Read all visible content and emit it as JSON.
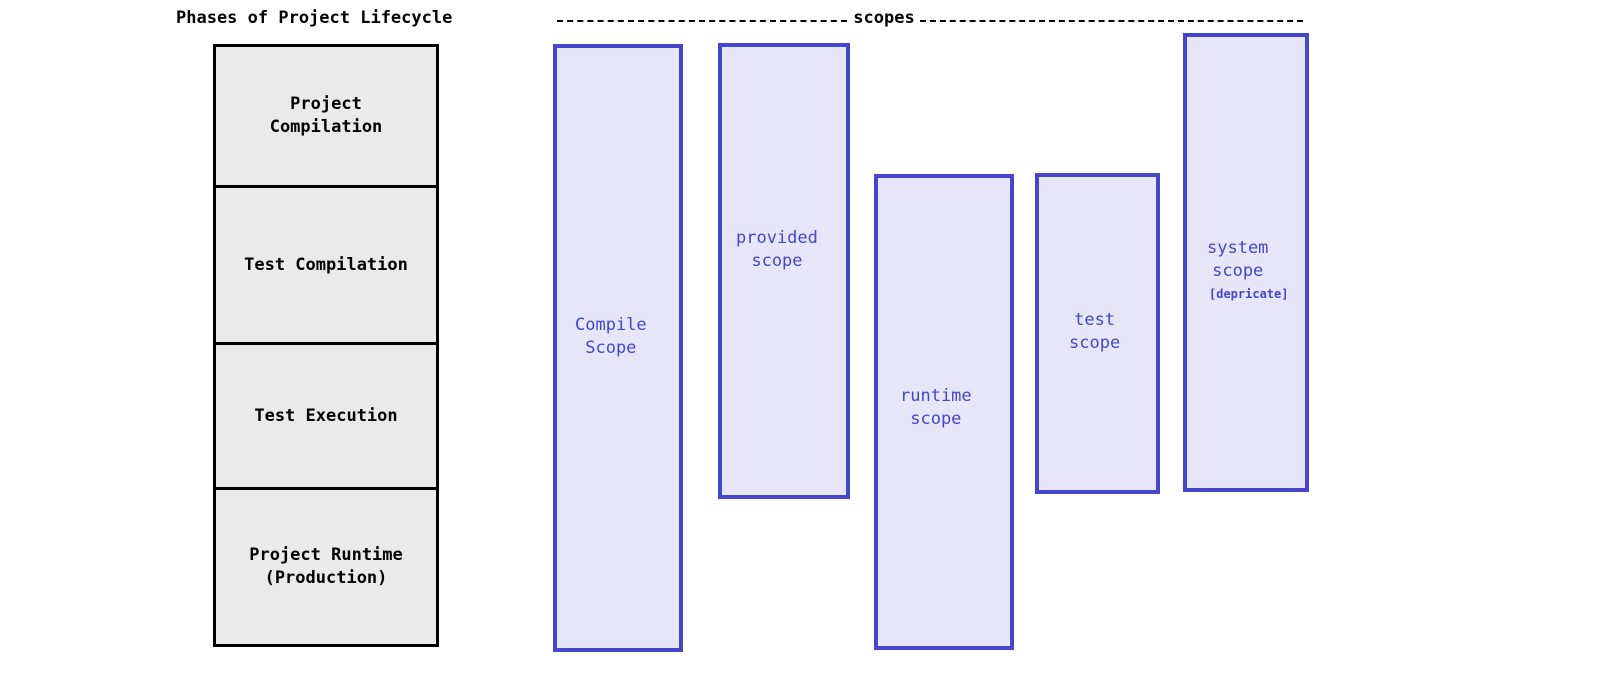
{
  "title": "Phases of Project Lifecycle",
  "scopes_header": "scopes",
  "phases": [
    {
      "label": "Project\nCompilation"
    },
    {
      "label": "Test Compilation"
    },
    {
      "label": "Test Execution"
    },
    {
      "label": "Project Runtime\n(Production)"
    }
  ],
  "scopes": [
    {
      "label": "Compile\nScope",
      "covers": [
        "Project Compilation",
        "Test Compilation",
        "Test Execution",
        "Project Runtime (Production)"
      ]
    },
    {
      "label": "provided\nscope",
      "covers": [
        "Project Compilation",
        "Test Compilation",
        "Test Execution"
      ]
    },
    {
      "label": "runtime\nscope",
      "covers": [
        "Test Compilation",
        "Test Execution",
        "Project Runtime (Production)"
      ]
    },
    {
      "label": "test\nscope",
      "covers": [
        "Test Compilation",
        "Test Execution"
      ]
    },
    {
      "label": "system\nscope",
      "note": "[depricate]",
      "covers": [
        "Project Compilation",
        "Test Compilation",
        "Test Execution"
      ]
    }
  ],
  "colors": {
    "phase_fill": "#eaeaea",
    "phase_border": "#000000",
    "scope_fill": "#e6e6f8",
    "scope_border": "#4447cc",
    "scope_text": "#4447cc"
  }
}
